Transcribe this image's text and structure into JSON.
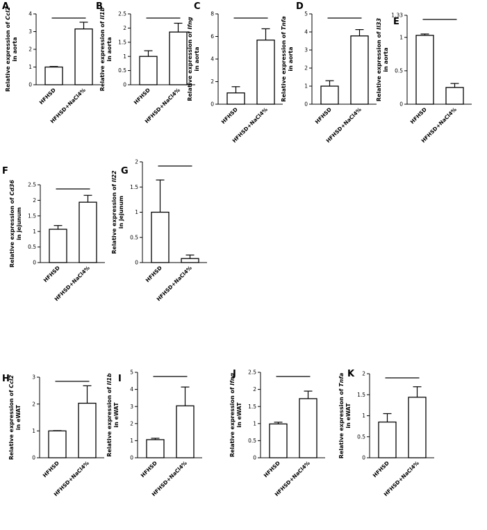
{
  "chart_data": [
    {
      "letter": "A",
      "type": "bar",
      "categories": [
        "HFHSD",
        "HFHSD+NaCl4%"
      ],
      "values": [
        1.0,
        3.15
      ],
      "errors": [
        0.03,
        0.38
      ],
      "ylim": [
        0,
        4
      ],
      "yticks": [
        0,
        1,
        2,
        3,
        4
      ],
      "ylabel": {
        "pre": "Relative expression of ",
        "gene": "Ccl2",
        "post": "in aorta"
      }
    },
    {
      "letter": "B",
      "type": "bar",
      "categories": [
        "HFHSD",
        "HFHSD+NaCl4%"
      ],
      "values": [
        1.0,
        1.86
      ],
      "errors": [
        0.2,
        0.31
      ],
      "ylim": [
        0,
        2.5
      ],
      "yticks": [
        0,
        0.5,
        1.0,
        1.5,
        2.0,
        2.5
      ],
      "ylabel": {
        "pre": "Relative expression of ",
        "gene": "Il1b",
        "post": "in aorta"
      }
    },
    {
      "letter": "C",
      "type": "bar",
      "categories": [
        "HFHSD",
        "HFHSD+NaCl4%"
      ],
      "values": [
        1.0,
        5.68
      ],
      "errors": [
        0.55,
        1.0
      ],
      "ylim": [
        0,
        8
      ],
      "yticks": [
        0,
        2,
        4,
        6,
        8
      ],
      "ylabel": {
        "pre": "Relative expression of ",
        "gene": "Ifng",
        "post": "in aorta"
      }
    },
    {
      "letter": "D",
      "type": "bar",
      "categories": [
        "HFHSD",
        "HFHSD+NaCl4%"
      ],
      "values": [
        1.0,
        3.78
      ],
      "errors": [
        0.3,
        0.35
      ],
      "ylim": [
        0,
        5
      ],
      "yticks": [
        0,
        1,
        2,
        3,
        4,
        5
      ],
      "ylabel": {
        "pre": "Relative expression of ",
        "gene": "Tnfa",
        "post": "in aorta"
      }
    },
    {
      "letter": "E",
      "type": "bar",
      "categories": [
        "HFHSD",
        "HFHSD+NaCl4%"
      ],
      "values": [
        1.03,
        0.25
      ],
      "errors": [
        0.02,
        0.06
      ],
      "ylim": [
        0,
        1.33
      ],
      "yticks": [
        0,
        0.5,
        1.0,
        1.33
      ],
      "ylabel": {
        "pre": "Relative expression of ",
        "gene": "Il33",
        "post": "in aorta"
      }
    },
    {
      "letter": "F",
      "type": "bar",
      "categories": [
        "HFHSD",
        "HFHSD+NaCl4%"
      ],
      "values": [
        1.07,
        1.94
      ],
      "errors": [
        0.12,
        0.22
      ],
      "ylim": [
        0,
        2.5
      ],
      "yticks": [
        0,
        0.5,
        1.0,
        1.5,
        2.0,
        2.5
      ],
      "ylabel": {
        "pre": "Relative expression of ",
        "gene": "Cd36",
        "post": "in jejunum"
      }
    },
    {
      "letter": "G",
      "type": "bar",
      "categories": [
        "HFHSD",
        "HFHSD+NaCl4%"
      ],
      "values": [
        1.0,
        0.08
      ],
      "errors": [
        0.64,
        0.07
      ],
      "ylim": [
        0,
        2.0
      ],
      "yticks": [
        0,
        0.5,
        1.0,
        1.5,
        2.0
      ],
      "ylabel": {
        "pre": "Relative expression of ",
        "gene": "Il22",
        "post": "in jejunum"
      }
    },
    {
      "letter": "H",
      "type": "bar",
      "categories": [
        "HFHSD",
        "HFHSD+NaCl4%"
      ],
      "values": [
        1.0,
        2.03
      ],
      "errors": [
        0.01,
        0.65
      ],
      "ylim": [
        0,
        3
      ],
      "yticks": [
        0,
        1,
        2,
        3
      ],
      "ylabel": {
        "pre": "Relative expression of ",
        "gene": "Ccl2",
        "post": "in eWAT"
      }
    },
    {
      "letter": "I",
      "type": "bar",
      "categories": [
        "HFHSD",
        "HFHSD+NaCl4%"
      ],
      "values": [
        1.06,
        3.04
      ],
      "errors": [
        0.08,
        1.1
      ],
      "ylim": [
        0,
        5
      ],
      "yticks": [
        0,
        1,
        2,
        3,
        4,
        5
      ],
      "ylabel": {
        "pre": "Relative expression of ",
        "gene": "Il1b",
        "post": "in eWAT"
      }
    },
    {
      "letter": "J",
      "type": "bar",
      "categories": [
        "HFHSD",
        "HFHSD+NaCl4%"
      ],
      "values": [
        0.99,
        1.73
      ],
      "errors": [
        0.05,
        0.22
      ],
      "ylim": [
        0,
        2.5
      ],
      "yticks": [
        0,
        0.5,
        1.0,
        1.5,
        2.0,
        2.5
      ],
      "ylabel": {
        "pre": "Relative expression of ",
        "gene": "Ifng",
        "post": "in eWAT"
      }
    },
    {
      "letter": "K",
      "type": "bar",
      "categories": [
        "HFHSD",
        "HFHSD+NaCl4%"
      ],
      "values": [
        0.85,
        1.44
      ],
      "errors": [
        0.2,
        0.25
      ],
      "ylim": [
        0,
        2.0
      ],
      "yticks": [
        0,
        0.5,
        1.0,
        1.5,
        2.0
      ],
      "ylabel": {
        "pre": "Relative expression of ",
        "gene": "Tnfa",
        "post": "in eWAT"
      }
    }
  ]
}
